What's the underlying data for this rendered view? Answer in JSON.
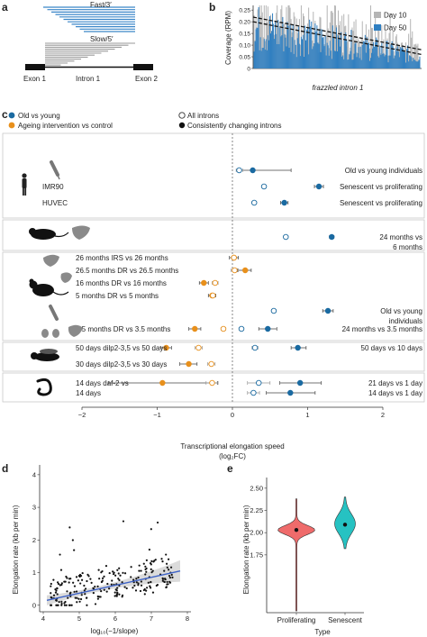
{
  "panels": {
    "a": {
      "letter": "a",
      "fast_label": "Fast/3′",
      "slow_label": "Slow/5′",
      "exon1": "Exon 1",
      "intron1": "Intron 1",
      "exon2": "Exon 2",
      "fast_color": "#3a86c8",
      "slow_color": "#9a9a9a"
    },
    "b": {
      "letter": "b",
      "ylabel": "Coverage (RPM)",
      "xlabel": "frazzled intron 1",
      "legend": [
        {
          "name": "Day 10",
          "color": "#b5b5b5"
        },
        {
          "name": "Day 50",
          "color": "#2f7fc1"
        }
      ],
      "yticks": [
        "0",
        "0.05",
        "0.10",
        "0.15",
        "0.20",
        "0.25"
      ]
    },
    "c": {
      "letter": "c",
      "legend_color": [
        {
          "label": "Old vs young",
          "color": "#1a6aa1"
        },
        {
          "label": "Ageing intervention vs control",
          "color": "#e8901c"
        }
      ],
      "legend_fill": [
        {
          "label": "All introns",
          "filled": false
        },
        {
          "label": "Consistently changing introns",
          "filled": true
        }
      ],
      "xlabel": "Transcriptional elongation speed",
      "xlabel_unit": "(log₂FC)",
      "xticks": [
        "−2",
        "−1",
        "0",
        "1",
        "2"
      ],
      "left_labels": [
        {
          "text": "IMR90",
          "row": 1
        },
        {
          "text": "HUVEC",
          "row": 2
        },
        {
          "text": "26 months IRS vs 26 months",
          "row": 4
        },
        {
          "text": "26.5 months DR vs 26.5 months",
          "row": 5
        },
        {
          "text": "16 months DR vs 16 months",
          "row": 6
        },
        {
          "text": "5 months DR vs 5 months",
          "row": 7
        },
        {
          "text": "3.5 months DR vs 3.5 months",
          "row": 9
        },
        {
          "text": "50 days dilp2-3,5 vs 50 days",
          "row": 10
        },
        {
          "text": "30 days dilp2-3,5 vs 30 days",
          "row": 11
        },
        {
          "text": "14 days daf-2 vs",
          "row": 12
        },
        {
          "text": "14 days",
          "row": 13
        }
      ],
      "right_labels": [
        {
          "text": "Old vs young individuals",
          "row": 0
        },
        {
          "text": "Senescent vs proliferating",
          "row": 1
        },
        {
          "text": "Senescent vs proliferating",
          "row": 2
        },
        {
          "text": "24 months vs",
          "row": 3
        },
        {
          "text": "6 months",
          "row": 3.5
        },
        {
          "text": "Old vs young",
          "row": 8
        },
        {
          "text": "individuals",
          "row": 8.5
        },
        {
          "text": "24 months vs 3.5 months",
          "row": 9
        },
        {
          "text": "50 days vs 10 days",
          "row": 10
        },
        {
          "text": "21 days vs 1 day",
          "row": 12
        },
        {
          "text": "14 days vs 1 day",
          "row": 13
        }
      ]
    },
    "d": {
      "letter": "d",
      "ylabel": "Elongation rate (kb per min)",
      "xlabel": "log₁₀(−1/slope)",
      "xticks": [
        "4",
        "5",
        "6",
        "7",
        "8"
      ],
      "yticks": [
        "0",
        "1",
        "2",
        "3",
        "4"
      ]
    },
    "e": {
      "letter": "e",
      "ylabel": "Elongation rate (kb per min)",
      "xlabel": "Type",
      "categories": [
        "Proliferating",
        "Senescent"
      ],
      "yticks": [
        "1.75",
        "2.00",
        "2.25",
        "2.50"
      ],
      "colors": {
        "Proliferating": "#ef6b6b",
        "Senescent": "#26c2c2"
      }
    }
  },
  "chart_data": [
    {
      "type": "bar",
      "title": "",
      "xlabel": "frazzled intron 1",
      "ylabel": "Coverage (RPM)",
      "ylim": [
        0,
        0.27
      ],
      "series": [
        {
          "name": "Day 10",
          "trend": [
            0.22,
            0.08
          ]
        },
        {
          "name": "Day 50",
          "trend": [
            0.2,
            0.06
          ]
        }
      ]
    },
    {
      "type": "scatter",
      "title": "",
      "xlabel": "Transcriptional elongation speed (log₂FC)",
      "xlim": [
        -2,
        2
      ],
      "points": [
        {
          "row": 0,
          "x": 0.27,
          "lo": 0.07,
          "hi": 0.78,
          "group": "old",
          "filled": true
        },
        {
          "row": 0,
          "x": 0.09,
          "lo": 0.05,
          "hi": 0.14,
          "group": "old",
          "filled": false
        },
        {
          "row": 1,
          "x": 1.15,
          "lo": 1.09,
          "hi": 1.21,
          "group": "old",
          "filled": true
        },
        {
          "row": 1,
          "x": 0.42,
          "lo": 0.39,
          "hi": 0.45,
          "group": "old",
          "filled": false
        },
        {
          "row": 2,
          "x": 0.69,
          "lo": 0.64,
          "hi": 0.74,
          "group": "old",
          "filled": true
        },
        {
          "row": 2,
          "x": 0.29,
          "lo": 0.26,
          "hi": 0.32,
          "group": "old",
          "filled": false
        },
        {
          "row": 3,
          "x": 1.32,
          "lo": 1.29,
          "hi": 1.35,
          "group": "old",
          "filled": true
        },
        {
          "row": 3,
          "x": 0.71,
          "lo": 0.68,
          "hi": 0.74,
          "group": "old",
          "filled": false
        },
        {
          "row": 4,
          "x": 0.02,
          "lo": -0.04,
          "hi": 0.08,
          "group": "int",
          "filled": true
        },
        {
          "row": 4,
          "x": 0.02,
          "lo": -0.01,
          "hi": 0.05,
          "group": "int",
          "filled": false
        },
        {
          "row": 5,
          "x": 0.17,
          "lo": 0.07,
          "hi": 0.25,
          "group": "int",
          "filled": true
        },
        {
          "row": 5,
          "x": 0.03,
          "lo": -0.02,
          "hi": 0.08,
          "group": "int",
          "filled": false
        },
        {
          "row": 6,
          "x": -0.38,
          "lo": -0.44,
          "hi": -0.32,
          "group": "int",
          "filled": true
        },
        {
          "row": 6,
          "x": -0.23,
          "lo": -0.27,
          "hi": -0.19,
          "group": "int",
          "filled": false
        },
        {
          "row": 7,
          "x": -0.27,
          "lo": -0.32,
          "hi": -0.22,
          "group": "int",
          "filled": true
        },
        {
          "row": 7,
          "x": -0.26,
          "lo": -0.29,
          "hi": -0.23,
          "group": "int",
          "filled": false
        },
        {
          "row": 8,
          "x": 1.27,
          "lo": 1.2,
          "hi": 1.34,
          "group": "old",
          "filled": true
        },
        {
          "row": 8,
          "x": 0.55,
          "lo": 0.52,
          "hi": 0.58,
          "group": "old",
          "filled": false
        },
        {
          "row": 9,
          "x": -0.5,
          "lo": -0.58,
          "hi": -0.42,
          "group": "int",
          "filled": true
        },
        {
          "row": 9,
          "x": -0.12,
          "lo": -0.15,
          "hi": -0.09,
          "group": "int",
          "filled": false
        },
        {
          "row": 9,
          "x": 0.47,
          "lo": 0.35,
          "hi": 0.59,
          "group": "old",
          "filled": true
        },
        {
          "row": 9,
          "x": 0.12,
          "lo": 0.09,
          "hi": 0.15,
          "group": "old",
          "filled": false
        },
        {
          "row": 10,
          "x": -0.88,
          "lo": -0.95,
          "hi": -0.81,
          "group": "int",
          "filled": true
        },
        {
          "row": 10,
          "x": -0.45,
          "lo": -0.5,
          "hi": -0.4,
          "group": "int",
          "filled": false
        },
        {
          "row": 10,
          "x": 0.87,
          "lo": 0.78,
          "hi": 0.98,
          "group": "old",
          "filled": true
        },
        {
          "row": 10,
          "x": 0.3,
          "lo": 0.26,
          "hi": 0.34,
          "group": "old",
          "filled": false
        },
        {
          "row": 11,
          "x": -0.58,
          "lo": -0.7,
          "hi": -0.47,
          "group": "int",
          "filled": true
        },
        {
          "row": 11,
          "x": -0.28,
          "lo": -0.33,
          "hi": -0.23,
          "group": "int",
          "filled": false
        },
        {
          "row": 12,
          "x": -0.93,
          "lo": -1.65,
          "hi": -0.2,
          "group": "int",
          "filled": true
        },
        {
          "row": 12,
          "x": -0.27,
          "lo": -0.35,
          "hi": -0.19,
          "group": "int",
          "filled": false
        },
        {
          "row": 12,
          "x": 0.9,
          "lo": 0.63,
          "hi": 1.18,
          "group": "old",
          "filled": true
        },
        {
          "row": 12,
          "x": 0.35,
          "lo": 0.2,
          "hi": 0.5,
          "group": "old",
          "filled": false
        },
        {
          "row": 13,
          "x": 0.77,
          "lo": 0.45,
          "hi": 1.1,
          "group": "old",
          "filled": true
        },
        {
          "row": 13,
          "x": 0.28,
          "lo": 0.2,
          "hi": 0.36,
          "group": "old",
          "filled": false
        }
      ]
    },
    {
      "type": "scatter",
      "title": "",
      "xlabel": "log₁₀(−1/slope)",
      "ylabel": "Elongation rate (kb per min)",
      "xlim": [
        3.9,
        8.1
      ],
      "ylim": [
        -0.2,
        4.3
      ],
      "fit": {
        "x": [
          4.1,
          7.8
        ],
        "y": [
          0.15,
          1.05
        ]
      }
    },
    {
      "type": "violin",
      "title": "",
      "xlabel": "Type",
      "ylabel": "Elongation rate (kb per min)",
      "categories": [
        "Proliferating",
        "Senescent"
      ],
      "medians": [
        2.03,
        2.09
      ],
      "ranges": [
        [
          1.12,
          2.38
        ],
        [
          1.82,
          2.4
        ]
      ],
      "ylim": [
        1.1,
        2.62
      ]
    }
  ]
}
